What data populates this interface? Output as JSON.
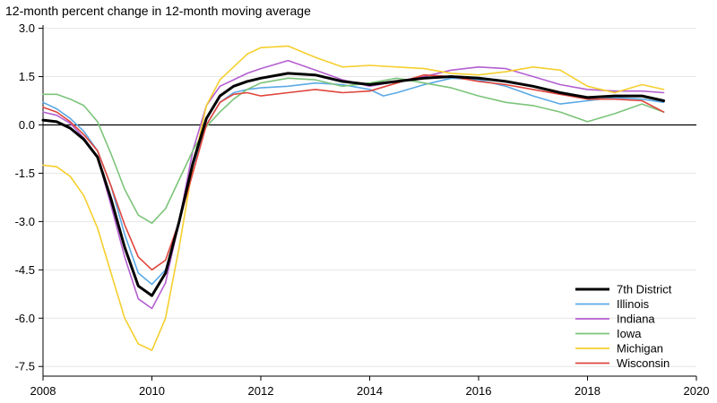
{
  "chart_data": {
    "type": "line",
    "ylabel": "12-month percent change in 12-month moving average",
    "xlim": [
      2008,
      2020
    ],
    "ylim": [
      -7.8,
      3.1
    ],
    "x_ticks": [
      2008,
      2010,
      2012,
      2014,
      2016,
      2018,
      2020
    ],
    "y_ticks": [
      3.0,
      1.5,
      0.0,
      -1.5,
      -3.0,
      -4.5,
      -6.0,
      -7.5
    ],
    "y_tick_labels": [
      "3.0",
      "1.5",
      "0.0",
      "-1.5",
      "-3.0",
      "-4.5",
      "-6.0",
      "-7.5"
    ],
    "grid": "horizontal",
    "zero_line": true,
    "legend_position": "bottom-right",
    "series": [
      {
        "name": "7th District",
        "color": "#000000",
        "emphasis": true,
        "points": [
          [
            2008.0,
            0.15
          ],
          [
            2008.25,
            0.1
          ],
          [
            2008.5,
            -0.1
          ],
          [
            2008.75,
            -0.45
          ],
          [
            2009.0,
            -1.0
          ],
          [
            2009.25,
            -2.3
          ],
          [
            2009.5,
            -3.8
          ],
          [
            2009.75,
            -5.0
          ],
          [
            2010.0,
            -5.3
          ],
          [
            2010.25,
            -4.6
          ],
          [
            2010.5,
            -3.0
          ],
          [
            2010.75,
            -1.2
          ],
          [
            2011.0,
            0.2
          ],
          [
            2011.25,
            0.9
          ],
          [
            2011.5,
            1.2
          ],
          [
            2011.75,
            1.35
          ],
          [
            2012.0,
            1.45
          ],
          [
            2012.5,
            1.6
          ],
          [
            2013.0,
            1.55
          ],
          [
            2013.5,
            1.35
          ],
          [
            2014.0,
            1.25
          ],
          [
            2014.5,
            1.35
          ],
          [
            2015.0,
            1.45
          ],
          [
            2015.5,
            1.5
          ],
          [
            2016.0,
            1.45
          ],
          [
            2016.5,
            1.35
          ],
          [
            2017.0,
            1.2
          ],
          [
            2017.5,
            1.0
          ],
          [
            2018.0,
            0.85
          ],
          [
            2018.5,
            0.9
          ],
          [
            2019.0,
            0.9
          ],
          [
            2019.4,
            0.75
          ]
        ]
      },
      {
        "name": "Illinois",
        "color": "#5aa9e6",
        "points": [
          [
            2008.0,
            0.7
          ],
          [
            2008.25,
            0.5
          ],
          [
            2008.5,
            0.2
          ],
          [
            2008.75,
            -0.2
          ],
          [
            2009.0,
            -0.8
          ],
          [
            2009.25,
            -1.9
          ],
          [
            2009.5,
            -3.4
          ],
          [
            2009.75,
            -4.6
          ],
          [
            2010.0,
            -4.95
          ],
          [
            2010.25,
            -4.5
          ],
          [
            2010.5,
            -3.0
          ],
          [
            2010.75,
            -1.3
          ],
          [
            2011.0,
            0.0
          ],
          [
            2011.25,
            0.7
          ],
          [
            2011.5,
            1.0
          ],
          [
            2011.75,
            1.1
          ],
          [
            2012.0,
            1.15
          ],
          [
            2012.5,
            1.2
          ],
          [
            2013.0,
            1.3
          ],
          [
            2013.5,
            1.25
          ],
          [
            2014.0,
            1.1
          ],
          [
            2014.25,
            0.9
          ],
          [
            2014.5,
            1.0
          ],
          [
            2015.0,
            1.25
          ],
          [
            2015.5,
            1.45
          ],
          [
            2016.0,
            1.4
          ],
          [
            2016.5,
            1.2
          ],
          [
            2017.0,
            0.9
          ],
          [
            2017.5,
            0.65
          ],
          [
            2018.0,
            0.75
          ],
          [
            2018.5,
            0.85
          ],
          [
            2019.0,
            0.8
          ],
          [
            2019.4,
            0.7
          ]
        ]
      },
      {
        "name": "Indiana",
        "color": "#b45fd0",
        "points": [
          [
            2008.0,
            0.4
          ],
          [
            2008.25,
            0.3
          ],
          [
            2008.5,
            0.05
          ],
          [
            2008.75,
            -0.4
          ],
          [
            2009.0,
            -1.0
          ],
          [
            2009.25,
            -2.5
          ],
          [
            2009.5,
            -4.1
          ],
          [
            2009.75,
            -5.4
          ],
          [
            2010.0,
            -5.7
          ],
          [
            2010.25,
            -4.9
          ],
          [
            2010.5,
            -3.0
          ],
          [
            2010.75,
            -0.8
          ],
          [
            2011.0,
            0.6
          ],
          [
            2011.25,
            1.2
          ],
          [
            2011.5,
            1.4
          ],
          [
            2011.75,
            1.6
          ],
          [
            2012.0,
            1.75
          ],
          [
            2012.5,
            2.0
          ],
          [
            2013.0,
            1.7
          ],
          [
            2013.5,
            1.4
          ],
          [
            2014.0,
            1.2
          ],
          [
            2014.5,
            1.35
          ],
          [
            2015.0,
            1.5
          ],
          [
            2015.5,
            1.7
          ],
          [
            2016.0,
            1.8
          ],
          [
            2016.5,
            1.75
          ],
          [
            2017.0,
            1.5
          ],
          [
            2017.5,
            1.25
          ],
          [
            2018.0,
            1.1
          ],
          [
            2018.5,
            1.05
          ],
          [
            2019.0,
            1.05
          ],
          [
            2019.4,
            1.0
          ]
        ]
      },
      {
        "name": "Iowa",
        "color": "#7cc47a",
        "points": [
          [
            2008.0,
            0.95
          ],
          [
            2008.25,
            0.95
          ],
          [
            2008.5,
            0.8
          ],
          [
            2008.75,
            0.6
          ],
          [
            2009.0,
            0.1
          ],
          [
            2009.25,
            -0.9
          ],
          [
            2009.5,
            -2.0
          ],
          [
            2009.75,
            -2.8
          ],
          [
            2010.0,
            -3.05
          ],
          [
            2010.25,
            -2.6
          ],
          [
            2010.5,
            -1.7
          ],
          [
            2010.75,
            -0.8
          ],
          [
            2011.0,
            -0.05
          ],
          [
            2011.25,
            0.4
          ],
          [
            2011.5,
            0.8
          ],
          [
            2011.75,
            1.1
          ],
          [
            2012.0,
            1.3
          ],
          [
            2012.5,
            1.45
          ],
          [
            2013.0,
            1.4
          ],
          [
            2013.5,
            1.2
          ],
          [
            2014.0,
            1.3
          ],
          [
            2014.5,
            1.45
          ],
          [
            2015.0,
            1.3
          ],
          [
            2015.5,
            1.15
          ],
          [
            2016.0,
            0.9
          ],
          [
            2016.5,
            0.7
          ],
          [
            2017.0,
            0.6
          ],
          [
            2017.5,
            0.4
          ],
          [
            2018.0,
            0.1
          ],
          [
            2018.5,
            0.35
          ],
          [
            2019.0,
            0.65
          ],
          [
            2019.4,
            0.4
          ]
        ]
      },
      {
        "name": "Michigan",
        "color": "#f5cf2e",
        "points": [
          [
            2008.0,
            -1.25
          ],
          [
            2008.25,
            -1.3
          ],
          [
            2008.5,
            -1.6
          ],
          [
            2008.75,
            -2.2
          ],
          [
            2009.0,
            -3.2
          ],
          [
            2009.25,
            -4.6
          ],
          [
            2009.5,
            -6.0
          ],
          [
            2009.75,
            -6.8
          ],
          [
            2010.0,
            -7.0
          ],
          [
            2010.25,
            -6.0
          ],
          [
            2010.5,
            -3.8
          ],
          [
            2010.75,
            -1.3
          ],
          [
            2011.0,
            0.6
          ],
          [
            2011.25,
            1.4
          ],
          [
            2011.5,
            1.8
          ],
          [
            2011.75,
            2.2
          ],
          [
            2012.0,
            2.4
          ],
          [
            2012.5,
            2.45
          ],
          [
            2013.0,
            2.1
          ],
          [
            2013.5,
            1.8
          ],
          [
            2014.0,
            1.85
          ],
          [
            2014.5,
            1.8
          ],
          [
            2015.0,
            1.75
          ],
          [
            2015.5,
            1.6
          ],
          [
            2016.0,
            1.55
          ],
          [
            2016.5,
            1.65
          ],
          [
            2017.0,
            1.8
          ],
          [
            2017.5,
            1.7
          ],
          [
            2018.0,
            1.2
          ],
          [
            2018.5,
            1.0
          ],
          [
            2019.0,
            1.25
          ],
          [
            2019.4,
            1.1
          ]
        ]
      },
      {
        "name": "Wisconsin",
        "color": "#e0453d",
        "points": [
          [
            2008.0,
            0.55
          ],
          [
            2008.25,
            0.4
          ],
          [
            2008.5,
            0.1
          ],
          [
            2008.75,
            -0.3
          ],
          [
            2009.0,
            -0.8
          ],
          [
            2009.25,
            -1.9
          ],
          [
            2009.5,
            -3.1
          ],
          [
            2009.75,
            -4.1
          ],
          [
            2010.0,
            -4.5
          ],
          [
            2010.25,
            -4.2
          ],
          [
            2010.5,
            -3.0
          ],
          [
            2010.75,
            -1.5
          ],
          [
            2011.0,
            0.0
          ],
          [
            2011.25,
            0.7
          ],
          [
            2011.5,
            0.95
          ],
          [
            2011.75,
            1.0
          ],
          [
            2012.0,
            0.9
          ],
          [
            2012.5,
            1.0
          ],
          [
            2013.0,
            1.1
          ],
          [
            2013.5,
            1.0
          ],
          [
            2014.0,
            1.05
          ],
          [
            2014.5,
            1.3
          ],
          [
            2015.0,
            1.55
          ],
          [
            2015.5,
            1.5
          ],
          [
            2016.0,
            1.35
          ],
          [
            2016.5,
            1.25
          ],
          [
            2017.0,
            1.1
          ],
          [
            2017.5,
            0.95
          ],
          [
            2018.0,
            0.8
          ],
          [
            2018.5,
            0.8
          ],
          [
            2019.0,
            0.75
          ],
          [
            2019.4,
            0.4
          ]
        ]
      }
    ]
  }
}
